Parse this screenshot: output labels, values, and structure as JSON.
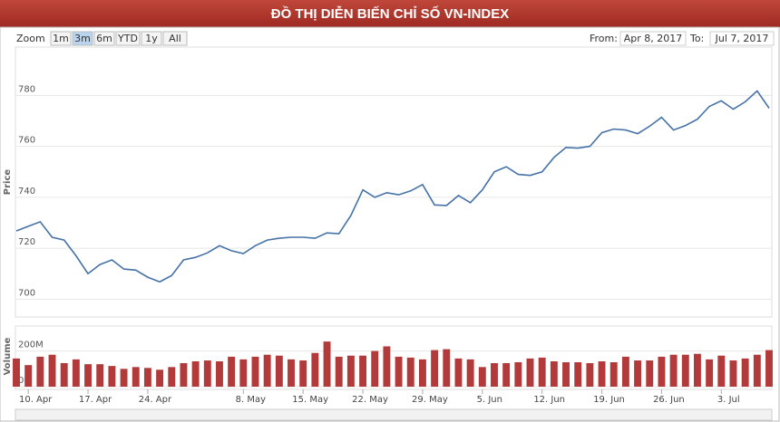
{
  "title": "ĐỒ THỊ DIỄN BIẾN CHỈ SỐ VN-INDEX",
  "zoom": {
    "label": "Zoom",
    "buttons": [
      "1m",
      "3m",
      "6m",
      "YTD",
      "1y",
      "All"
    ],
    "selected_index": 1
  },
  "range": {
    "from_label": "From:",
    "from": "Apr 8, 2017",
    "to_label": "To:",
    "to": "Jul 7, 2017"
  },
  "chart_data": [
    {
      "type": "line",
      "y_label": "Price",
      "color": "#4572a7",
      "grid": true,
      "categories": [
        null,
        "10. Apr",
        null,
        null,
        null,
        null,
        "17. Apr",
        null,
        null,
        null,
        null,
        "24. Apr",
        null,
        null,
        null,
        null,
        null,
        null,
        null,
        "8. May",
        null,
        null,
        null,
        null,
        "15. May",
        null,
        null,
        null,
        null,
        "22. May",
        null,
        null,
        null,
        null,
        "29. May",
        null,
        null,
        null,
        null,
        "5. Jun",
        null,
        null,
        null,
        null,
        "12. Jun",
        null,
        null,
        null,
        null,
        "19. Jun",
        null,
        null,
        null,
        null,
        "26. Jun",
        null,
        null,
        null,
        null,
        "3. Jul",
        null,
        null,
        null,
        null
      ],
      "values": [
        726.8,
        728.6,
        730.4,
        724.3,
        723.2,
        717,
        710,
        713.6,
        715.4,
        711.8,
        711.4,
        708.6,
        706.8,
        709.3,
        715.4,
        716.4,
        718.2,
        721,
        719,
        717.9,
        721,
        723.2,
        723.9,
        724.3,
        724.3,
        723.9,
        726,
        725.7,
        732.9,
        742.9,
        740,
        741.8,
        741,
        742.5,
        745,
        737,
        736.8,
        740.7,
        737.9,
        742.9,
        750,
        752,
        749,
        748.6,
        750,
        755.7,
        759.6,
        759.3,
        760,
        765.4,
        766.8,
        766.4,
        765,
        767.9,
        771.4,
        766.4,
        768.2,
        770.7,
        775.7,
        777.9,
        774.6,
        777.5,
        781.8,
        775
      ],
      "ylim": [
        693,
        799
      ],
      "yticks": [
        700,
        720,
        740,
        760,
        780
      ]
    },
    {
      "type": "bar",
      "y_label": "Volume",
      "color": "#b23a3a",
      "values": [
        158,
        121,
        168,
        179,
        132,
        153,
        126,
        126,
        116,
        100,
        110,
        105,
        95,
        110,
        132,
        142,
        147,
        142,
        168,
        153,
        168,
        179,
        174,
        153,
        147,
        189,
        253,
        168,
        174,
        174,
        200,
        226,
        168,
        163,
        153,
        205,
        210,
        158,
        153,
        110,
        132,
        132,
        137,
        158,
        163,
        142,
        137,
        137,
        132,
        142,
        137,
        168,
        147,
        147,
        168,
        179,
        179,
        184,
        153,
        174,
        147,
        158,
        179,
        205
      ],
      "ylim": [
        0,
        340
      ],
      "yticks": [
        {
          "value": 0,
          "label": "0M"
        },
        {
          "value": 200,
          "label": "200M"
        }
      ]
    }
  ]
}
